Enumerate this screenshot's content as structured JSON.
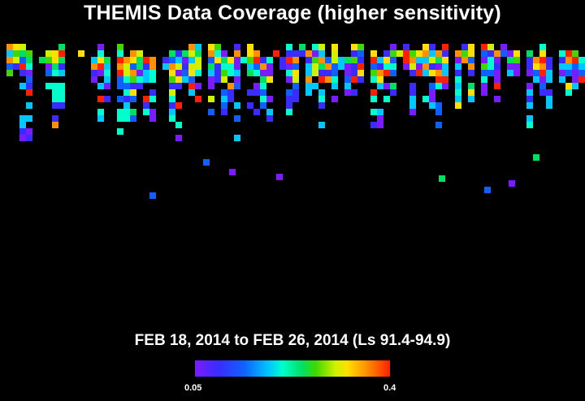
{
  "title": "THEMIS Data Coverage (higher sensitivity)",
  "date_range": "FEB 18, 2014 to FEB 26, 2014 (Ls 91.4-94.9)",
  "colorbar": {
    "min_label": "0.05",
    "max_label": "0.4",
    "colors": [
      "#7a1cff",
      "#3a2cff",
      "#1060ff",
      "#00c8ff",
      "#00ffcc",
      "#00e060",
      "#40d800",
      "#d0f000",
      "#ffe000",
      "#ff9000",
      "#ff2000"
    ]
  },
  "background_color": "#000000"
}
